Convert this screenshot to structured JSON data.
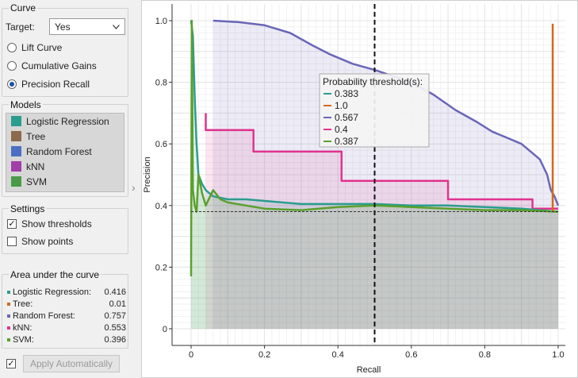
{
  "curve": {
    "group_title": "Curve",
    "target_label": "Target:",
    "target_value": "Yes",
    "options": [
      "Lift Curve",
      "Cumulative Gains",
      "Precision Recall"
    ],
    "selected": 2
  },
  "models": {
    "group_title": "Models",
    "items": [
      {
        "label": "Logistic Regression",
        "color": "#2a9d8f"
      },
      {
        "label": "Tree",
        "color": "#8c6a4b"
      },
      {
        "label": "Random Forest",
        "color": "#4a6fc4"
      },
      {
        "label": "kNN",
        "color": "#a23ea8"
      },
      {
        "label": "SVM",
        "color": "#4a9a4a"
      }
    ]
  },
  "settings": {
    "group_title": "Settings",
    "show_thresholds": "Show thresholds",
    "show_points": "Show points"
  },
  "auc": {
    "group_title": "Area under the curve",
    "rows": [
      {
        "label": "Logistic Regression:",
        "value": "0.416",
        "color": "#2a9d8f"
      },
      {
        "label": "Tree:",
        "value": "0.01",
        "color": "#d46a1a"
      },
      {
        "label": "Random Forest:",
        "value": "0.757",
        "color": "#6a66b8"
      },
      {
        "label": "kNN:",
        "value": "0.553",
        "color": "#e0338f"
      },
      {
        "label": "SVM:",
        "value": "0.396",
        "color": "#5aa02c"
      }
    ]
  },
  "apply_label": "Apply Automatically",
  "chart_data": {
    "type": "line",
    "xlabel": "Recall",
    "ylabel": "Precision",
    "xlim": [
      0,
      1
    ],
    "ylim": [
      0,
      1
    ],
    "xticks": [
      "0",
      "0.2",
      "0.4",
      "0.6",
      "0.8",
      "1.0"
    ],
    "yticks": [
      "0",
      "0.2",
      "0.4",
      "0.6",
      "0.8",
      "1.0"
    ],
    "threshold_line_x": 0.5,
    "baseline_y": 0.38,
    "grid": true,
    "tooltip": {
      "title": "Probability threshold(s):",
      "entries": [
        {
          "value": "0.383",
          "color": "#2a9d8f"
        },
        {
          "value": "1.0",
          "color": "#d46a1a"
        },
        {
          "value": "0.567",
          "color": "#6a66b8"
        },
        {
          "value": "0.4",
          "color": "#e0338f"
        },
        {
          "value": "0.387",
          "color": "#5aa02c"
        }
      ]
    },
    "series": [
      {
        "color": "#6a66b8",
        "points": [
          [
            0.06,
            1.0
          ],
          [
            0.13,
            0.995
          ],
          [
            0.2,
            0.985
          ],
          [
            0.27,
            0.96
          ],
          [
            0.33,
            0.92
          ],
          [
            0.38,
            0.89
          ],
          [
            0.44,
            0.86
          ],
          [
            0.5,
            0.84
          ],
          [
            0.55,
            0.82
          ],
          [
            0.6,
            0.8
          ],
          [
            0.66,
            0.76
          ],
          [
            0.72,
            0.71
          ],
          [
            0.78,
            0.67
          ],
          [
            0.82,
            0.64
          ],
          [
            0.86,
            0.62
          ],
          [
            0.9,
            0.6
          ],
          [
            0.93,
            0.57
          ],
          [
            0.95,
            0.55
          ],
          [
            0.97,
            0.5
          ],
          [
            0.98,
            0.45
          ],
          [
            0.99,
            0.43
          ],
          [
            1.0,
            0.4
          ]
        ]
      },
      {
        "color": "#e0338f",
        "points": [
          [
            0.04,
            0.7
          ],
          [
            0.04,
            0.645
          ],
          [
            0.17,
            0.645
          ],
          [
            0.17,
            0.575
          ],
          [
            0.41,
            0.575
          ],
          [
            0.41,
            0.48
          ],
          [
            0.7,
            0.48
          ],
          [
            0.7,
            0.42
          ],
          [
            0.93,
            0.42
          ],
          [
            0.93,
            0.39
          ],
          [
            1.0,
            0.39
          ]
        ]
      },
      {
        "color": "#2a9d8f",
        "points": [
          [
            0.0,
            1.0
          ],
          [
            0.005,
            0.95
          ],
          [
            0.01,
            0.75
          ],
          [
            0.015,
            0.6
          ],
          [
            0.02,
            0.5
          ],
          [
            0.03,
            0.47
          ],
          [
            0.04,
            0.45
          ],
          [
            0.06,
            0.43
          ],
          [
            0.1,
            0.42
          ],
          [
            0.15,
            0.42
          ],
          [
            0.2,
            0.415
          ],
          [
            0.3,
            0.405
          ],
          [
            0.4,
            0.405
          ],
          [
            0.5,
            0.405
          ],
          [
            0.6,
            0.4
          ],
          [
            0.7,
            0.4
          ],
          [
            0.8,
            0.395
          ],
          [
            0.9,
            0.39
          ],
          [
            1.0,
            0.38
          ]
        ]
      },
      {
        "color": "#5aa02c",
        "points": [
          [
            0.0,
            0.17
          ],
          [
            0.002,
            1.0
          ],
          [
            0.005,
            0.45
          ],
          [
            0.01,
            0.4
          ],
          [
            0.015,
            0.38
          ],
          [
            0.02,
            0.5
          ],
          [
            0.03,
            0.44
          ],
          [
            0.04,
            0.4
          ],
          [
            0.06,
            0.45
          ],
          [
            0.08,
            0.42
          ],
          [
            0.1,
            0.41
          ],
          [
            0.15,
            0.4
          ],
          [
            0.2,
            0.39
          ],
          [
            0.3,
            0.385
          ],
          [
            0.4,
            0.395
          ],
          [
            0.5,
            0.4
          ],
          [
            0.6,
            0.395
          ],
          [
            0.7,
            0.39
          ],
          [
            0.8,
            0.385
          ],
          [
            0.9,
            0.385
          ],
          [
            1.0,
            0.38
          ]
        ]
      },
      {
        "color": "#d46a1a",
        "points": [
          [
            0.985,
            0.99
          ],
          [
            0.985,
            0.38
          ]
        ]
      }
    ]
  }
}
